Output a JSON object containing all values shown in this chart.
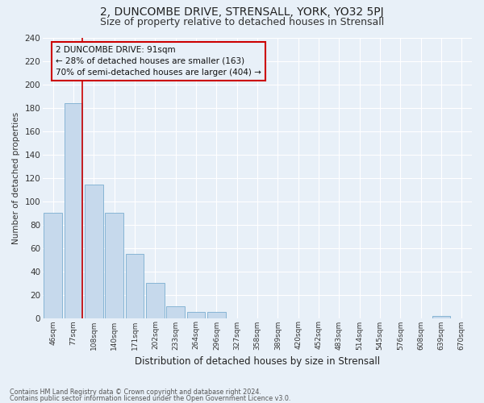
{
  "title": "2, DUNCOMBE DRIVE, STRENSALL, YORK, YO32 5PJ",
  "subtitle": "Size of property relative to detached houses in Strensall",
  "xlabel": "Distribution of detached houses by size in Strensall",
  "ylabel": "Number of detached properties",
  "footnote1": "Contains HM Land Registry data © Crown copyright and database right 2024.",
  "footnote2": "Contains public sector information licensed under the Open Government Licence v3.0.",
  "annotation_line1": "2 DUNCOMBE DRIVE: 91sqm",
  "annotation_line2": "← 28% of detached houses are smaller (163)",
  "annotation_line3": "70% of semi-detached houses are larger (404) →",
  "bar_labels": [
    "46sqm",
    "77sqm",
    "108sqm",
    "140sqm",
    "171sqm",
    "202sqm",
    "233sqm",
    "264sqm",
    "296sqm",
    "327sqm",
    "358sqm",
    "389sqm",
    "420sqm",
    "452sqm",
    "483sqm",
    "514sqm",
    "545sqm",
    "576sqm",
    "608sqm",
    "639sqm",
    "670sqm"
  ],
  "bar_values": [
    90,
    184,
    114,
    90,
    55,
    30,
    10,
    5,
    5,
    0,
    0,
    0,
    0,
    0,
    0,
    0,
    0,
    0,
    0,
    2,
    0
  ],
  "bar_color": "#c6d9ec",
  "bar_edge_color": "#7aaed0",
  "ylim": [
    0,
    240
  ],
  "yticks": [
    0,
    20,
    40,
    60,
    80,
    100,
    120,
    140,
    160,
    180,
    200,
    220,
    240
  ],
  "bg_color": "#e8f0f8",
  "grid_color": "#ffffff",
  "red_line_color": "#cc0000",
  "annotation_box_edge": "#cc0000",
  "title_fontsize": 10,
  "subtitle_fontsize": 9,
  "red_line_x": 1.43
}
